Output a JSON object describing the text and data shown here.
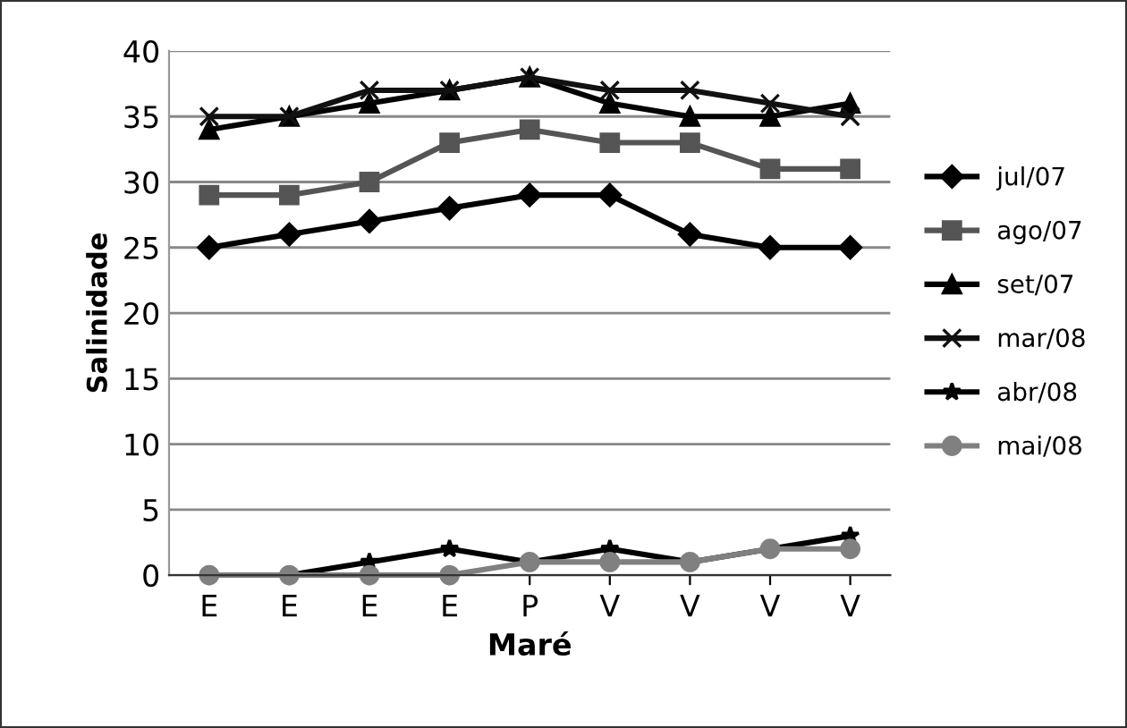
{
  "chart_data": {
    "type": "line",
    "xlabel": "Maré",
    "ylabel": "Salinidade",
    "categories": [
      "E",
      "E",
      "E",
      "E",
      "P",
      "V",
      "V",
      "V",
      "V"
    ],
    "series": [
      {
        "name": "jul/07",
        "color": "#000000",
        "marker": "diamond",
        "values": [
          25,
          26,
          27,
          28,
          29,
          29,
          26,
          25,
          25
        ]
      },
      {
        "name": "ago/07",
        "color": "#555555",
        "marker": "square",
        "values": [
          29,
          29,
          30,
          33,
          34,
          33,
          33,
          31,
          31
        ]
      },
      {
        "name": "set/07",
        "color": "#000000",
        "marker": "triangle",
        "values": [
          34,
          35,
          36,
          37,
          38,
          36,
          35,
          35,
          36
        ]
      },
      {
        "name": "mar/08",
        "color": "#111111",
        "marker": "cross",
        "values": [
          35,
          35,
          37,
          37,
          38,
          37,
          37,
          36,
          35
        ]
      },
      {
        "name": "abr/08",
        "color": "#000000",
        "marker": "star",
        "values": [
          0,
          0,
          1,
          2,
          1,
          2,
          1,
          2,
          3
        ]
      },
      {
        "name": "mai/08",
        "color": "#808080",
        "marker": "circle",
        "values": [
          0,
          0,
          0,
          0,
          1,
          1,
          1,
          2,
          2
        ]
      }
    ],
    "ylim": [
      0,
      40
    ],
    "yticks": [
      0,
      5,
      10,
      15,
      20,
      25,
      30,
      35,
      40
    ],
    "grid": "y",
    "legend": "right",
    "line_style": "solid"
  }
}
